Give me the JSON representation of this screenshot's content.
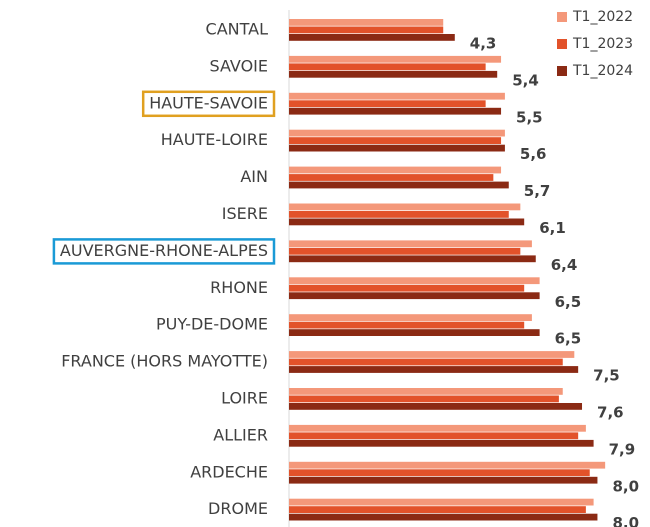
{
  "chart_data": {
    "type": "hbar",
    "categories": [
      "CANTAL",
      "SAVOIE",
      "HAUTE-SAVOIE",
      "HAUTE-LOIRE",
      "AIN",
      "ISERE",
      "AUVERGNE-RHONE-ALPES",
      "RHONE",
      "PUY-DE-DOME",
      "FRANCE (HORS MAYOTTE)",
      "LOIRE",
      "ALLIER",
      "ARDECHE",
      "DROME"
    ],
    "highlight_colors": [
      null,
      null,
      "#e0a020",
      null,
      null,
      null,
      "#1a9ad6",
      null,
      null,
      null,
      null,
      null,
      null,
      null
    ],
    "series": [
      {
        "name": "T1_2022",
        "color": "#f4987a",
        "values": [
          4.0,
          5.5,
          5.6,
          5.6,
          5.5,
          6.0,
          6.3,
          6.5,
          6.3,
          7.4,
          7.1,
          7.7,
          8.2,
          7.9
        ]
      },
      {
        "name": "T1_2023",
        "color": "#e2522a",
        "values": [
          4.0,
          5.1,
          5.1,
          5.5,
          5.3,
          5.7,
          6.0,
          6.1,
          6.1,
          7.1,
          7.0,
          7.5,
          7.8,
          7.7
        ]
      },
      {
        "name": "T1_2024",
        "color": "#8b2a14",
        "values": [
          4.3,
          5.4,
          5.5,
          5.6,
          5.7,
          6.1,
          6.4,
          6.5,
          6.5,
          7.5,
          7.6,
          7.9,
          8.0,
          8.0
        ],
        "value_labels": [
          "4,3",
          "5,4",
          "5,5",
          "5,6",
          "5,7",
          "6,1",
          "6,4",
          "6,5",
          "6,5",
          "7,5",
          "7,6",
          "7,9",
          "8,0",
          "8,0"
        ]
      }
    ],
    "xlim": [
      0,
      9
    ]
  }
}
